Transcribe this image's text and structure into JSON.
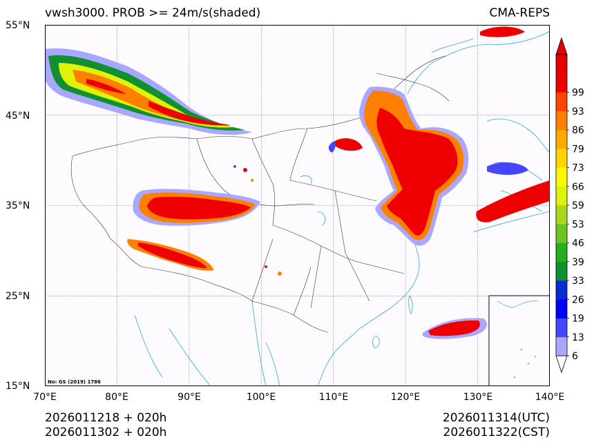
{
  "header": {
    "title": "vwsh3000. PROB >= 24m/s(shaded)",
    "model": "CMA-REPS"
  },
  "axes": {
    "lat_labels": [
      "55°N",
      "45°N",
      "35°N",
      "25°N",
      "15°N"
    ],
    "lon_labels": [
      "70°E",
      "80°E",
      "90°E",
      "100°E",
      "110°E",
      "120°E",
      "130°E",
      "140°E"
    ]
  },
  "colorbar": {
    "levels": [
      "6",
      "13",
      "19",
      "26",
      "33",
      "39",
      "46",
      "53",
      "59",
      "66",
      "73",
      "79",
      "86",
      "93",
      "99"
    ],
    "colors": [
      "#a8a8ff",
      "#4646ff",
      "#0000ff",
      "#0a2ad4",
      "#109030",
      "#21b021",
      "#6bc41f",
      "#a8d818",
      "#dff20a",
      "#fff800",
      "#ffd400",
      "#ffaa00",
      "#ff7f00",
      "#ff4500",
      "#ee0000",
      "#e40000"
    ]
  },
  "note": "No: GS (2019) 1786",
  "footer": {
    "init_utc": "2026011218  +  020h",
    "init_cst": "2026011302  +  020h",
    "valid_utc": "2026011314(UTC)",
    "valid_cst": "2026011322(CST)"
  }
}
